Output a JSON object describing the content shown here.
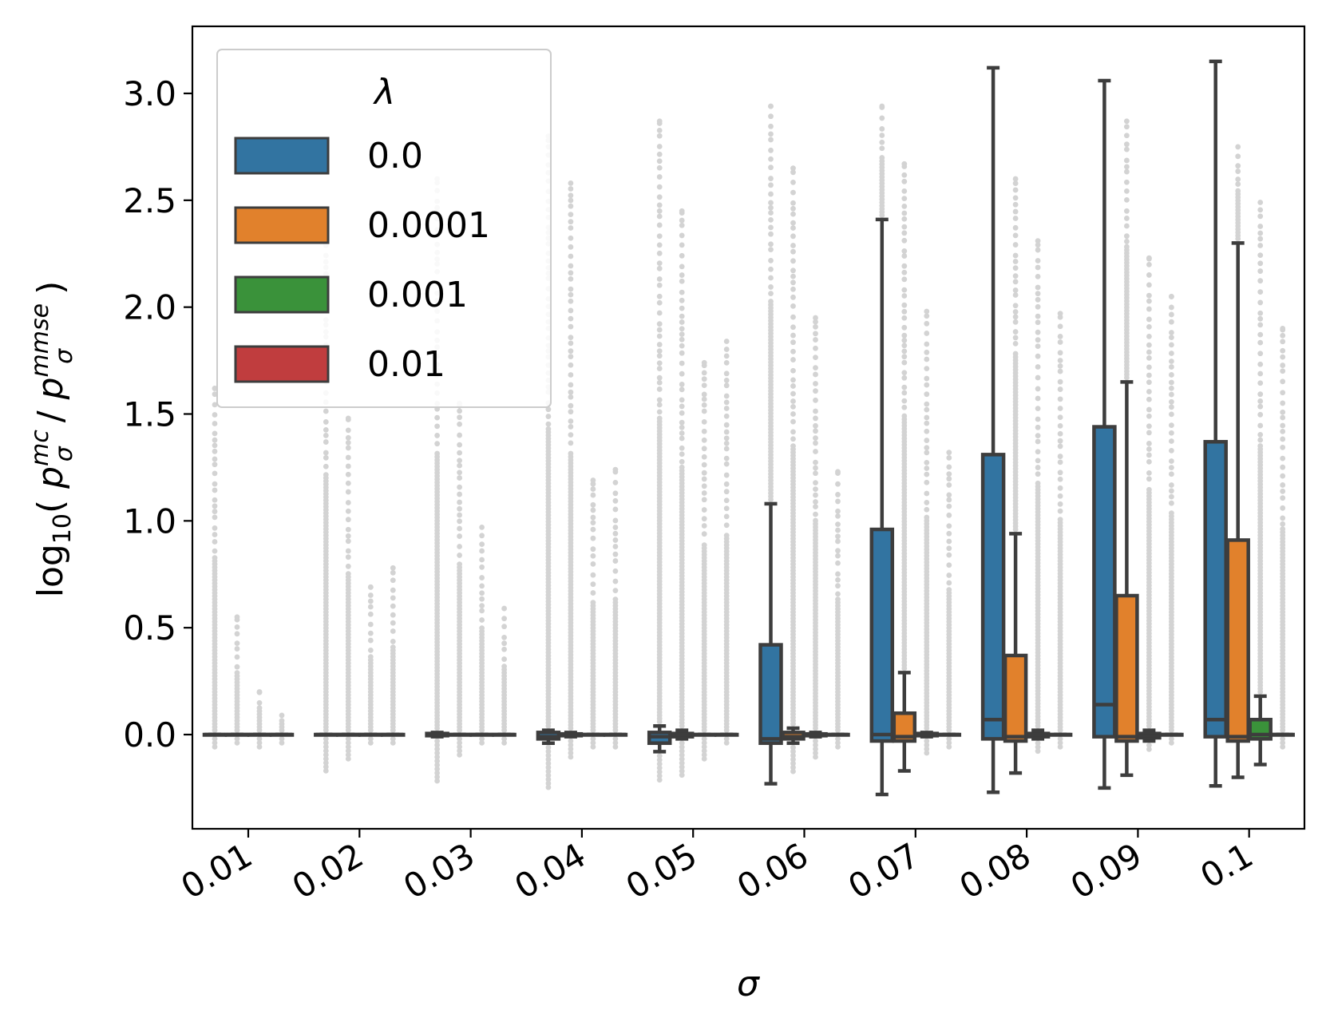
{
  "chart_data": {
    "type": "box",
    "xlabel": "σ",
    "ylabel_main": "log",
    "ylabel_sub": "10",
    "ylabel_open": "( ",
    "ylabel_p1": "p",
    "ylabel_p1_sub": "σ",
    "ylabel_p1_sup": "mc",
    "ylabel_slash": " / ",
    "ylabel_p2": "p",
    "ylabel_p2_sub": "σ",
    "ylabel_p2_sup": "mmse",
    "ylabel_close": " )",
    "ylim": [
      -0.44,
      3.32
    ],
    "yticks": [
      {
        "v": 0.0,
        "label": "0.0"
      },
      {
        "v": 0.5,
        "label": "0.5"
      },
      {
        "v": 1.0,
        "label": "1.0"
      },
      {
        "v": 1.5,
        "label": "1.5"
      },
      {
        "v": 2.0,
        "label": "2.0"
      },
      {
        "v": 2.5,
        "label": "2.5"
      },
      {
        "v": 3.0,
        "label": "3.0"
      }
    ],
    "categories": [
      "0.01",
      "0.02",
      "0.03",
      "0.04",
      "0.05",
      "0.06",
      "0.07",
      "0.08",
      "0.09",
      "0.1"
    ],
    "legend": {
      "title": "λ",
      "position": "top-left",
      "entries": [
        "0.0",
        "0.0001",
        "0.001",
        "0.01"
      ]
    },
    "series": [
      {
        "name": "0.0",
        "color": "#3274a1",
        "boxes": [
          {
            "lw": 0,
            "q1": 0,
            "med": 0,
            "q3": 0,
            "uw": 0
          },
          {
            "lw": 0,
            "q1": 0,
            "med": 0,
            "q3": 0,
            "uw": 0
          },
          {
            "lw": -0.01,
            "q1": -0.005,
            "med": 0,
            "q3": 0.005,
            "uw": 0.01
          },
          {
            "lw": -0.04,
            "q1": -0.02,
            "med": -0.01,
            "q3": 0.01,
            "uw": 0.02
          },
          {
            "lw": -0.08,
            "q1": -0.04,
            "med": -0.01,
            "q3": 0.01,
            "uw": 0.04
          },
          {
            "lw": -0.23,
            "q1": -0.04,
            "med": -0.02,
            "q3": 0.42,
            "uw": 1.08
          },
          {
            "lw": -0.28,
            "q1": -0.03,
            "med": 0.0,
            "q3": 0.96,
            "uw": 2.41
          },
          {
            "lw": -0.27,
            "q1": -0.02,
            "med": 0.07,
            "q3": 1.31,
            "uw": 3.12
          },
          {
            "lw": -0.25,
            "q1": -0.01,
            "med": 0.14,
            "q3": 1.44,
            "uw": 3.06
          },
          {
            "lw": -0.24,
            "q1": -0.01,
            "med": 0.07,
            "q3": 1.37,
            "uw": 3.15
          }
        ],
        "outliers": [
          {
            "min": -0.07,
            "max": 1.62
          },
          {
            "min": -0.18,
            "max": 2.4
          },
          {
            "min": -0.22,
            "max": 2.6
          },
          {
            "min": -0.25,
            "max": 2.8
          },
          {
            "min": -0.23,
            "max": 2.87
          },
          {
            "min": 1.1,
            "max": 2.94
          },
          {
            "min": 2.42,
            "max": 2.94
          },
          {
            "min": 3.12,
            "max": 3.12
          },
          {
            "min": 3.06,
            "max": 3.06
          },
          {
            "min": 3.15,
            "max": 3.15
          }
        ]
      },
      {
        "name": "0.0001",
        "color": "#e1812c",
        "boxes": [
          {
            "lw": 0,
            "q1": 0,
            "med": 0,
            "q3": 0,
            "uw": 0
          },
          {
            "lw": 0,
            "q1": 0,
            "med": 0,
            "q3": 0,
            "uw": 0
          },
          {
            "lw": 0,
            "q1": 0,
            "med": 0,
            "q3": 0,
            "uw": 0
          },
          {
            "lw": -0.01,
            "q1": -0.005,
            "med": 0,
            "q3": 0.003,
            "uw": 0.01
          },
          {
            "lw": -0.02,
            "q1": -0.01,
            "med": 0,
            "q3": 0.005,
            "uw": 0.02
          },
          {
            "lw": -0.04,
            "q1": -0.02,
            "med": -0.01,
            "q3": 0.01,
            "uw": 0.03
          },
          {
            "lw": -0.17,
            "q1": -0.03,
            "med": -0.01,
            "q3": 0.1,
            "uw": 0.29
          },
          {
            "lw": -0.18,
            "q1": -0.03,
            "med": -0.01,
            "q3": 0.37,
            "uw": 0.94
          },
          {
            "lw": -0.19,
            "q1": -0.03,
            "med": -0.01,
            "q3": 0.65,
            "uw": 1.65
          },
          {
            "lw": -0.2,
            "q1": -0.03,
            "med": -0.01,
            "q3": 0.91,
            "uw": 2.3
          }
        ],
        "outliers": [
          {
            "min": -0.05,
            "max": 0.55
          },
          {
            "min": -0.13,
            "max": 1.48
          },
          {
            "min": -0.1,
            "max": 1.55
          },
          {
            "min": -0.12,
            "max": 2.58
          },
          {
            "min": -0.19,
            "max": 2.45
          },
          {
            "min": -0.18,
            "max": 2.65
          },
          {
            "min": -0.1,
            "max": 2.67
          },
          {
            "min": -0.1,
            "max": 2.6
          },
          {
            "min": -0.1,
            "max": 2.87
          },
          {
            "min": 2.32,
            "max": 2.75
          }
        ]
      },
      {
        "name": "0.001",
        "color": "#3a923a",
        "boxes": [
          {
            "lw": 0,
            "q1": 0,
            "med": 0,
            "q3": 0,
            "uw": 0
          },
          {
            "lw": 0,
            "q1": 0,
            "med": 0,
            "q3": 0,
            "uw": 0
          },
          {
            "lw": 0,
            "q1": 0,
            "med": 0,
            "q3": 0,
            "uw": 0
          },
          {
            "lw": 0,
            "q1": 0,
            "med": 0,
            "q3": 0,
            "uw": 0
          },
          {
            "lw": 0,
            "q1": 0,
            "med": 0,
            "q3": 0,
            "uw": 0
          },
          {
            "lw": -0.01,
            "q1": -0.005,
            "med": 0,
            "q3": 0.003,
            "uw": 0.01
          },
          {
            "lw": -0.01,
            "q1": -0.005,
            "med": 0,
            "q3": 0.005,
            "uw": 0.01
          },
          {
            "lw": -0.02,
            "q1": -0.01,
            "med": 0,
            "q3": 0.005,
            "uw": 0.02
          },
          {
            "lw": -0.03,
            "q1": -0.015,
            "med": -0.005,
            "q3": 0.005,
            "uw": 0.02
          },
          {
            "lw": -0.14,
            "q1": -0.02,
            "med": 0,
            "q3": 0.07,
            "uw": 0.18
          }
        ],
        "outliers": [
          {
            "min": -0.06,
            "max": 0.2
          },
          {
            "min": -0.05,
            "max": 0.69
          },
          {
            "min": -0.05,
            "max": 0.97
          },
          {
            "min": -0.07,
            "max": 1.19
          },
          {
            "min": -0.12,
            "max": 1.74
          },
          {
            "min": -0.11,
            "max": 1.95
          },
          {
            "min": -0.1,
            "max": 1.98
          },
          {
            "min": -0.09,
            "max": 2.31
          },
          {
            "min": -0.08,
            "max": 2.23
          },
          {
            "min": -0.15,
            "max": 2.49
          }
        ]
      },
      {
        "name": "0.01",
        "color": "#c03d3e",
        "boxes": [
          {
            "lw": 0,
            "q1": 0,
            "med": 0,
            "q3": 0,
            "uw": 0
          },
          {
            "lw": 0,
            "q1": 0,
            "med": 0,
            "q3": 0,
            "uw": 0
          },
          {
            "lw": 0,
            "q1": 0,
            "med": 0,
            "q3": 0,
            "uw": 0
          },
          {
            "lw": 0,
            "q1": 0,
            "med": 0,
            "q3": 0,
            "uw": 0
          },
          {
            "lw": 0,
            "q1": 0,
            "med": 0,
            "q3": 0,
            "uw": 0
          },
          {
            "lw": 0,
            "q1": 0,
            "med": 0,
            "q3": 0,
            "uw": 0
          },
          {
            "lw": 0,
            "q1": 0,
            "med": 0,
            "q3": 0,
            "uw": 0
          },
          {
            "lw": 0,
            "q1": 0,
            "med": 0,
            "q3": 0,
            "uw": 0
          },
          {
            "lw": 0,
            "q1": 0,
            "med": 0,
            "q3": 0,
            "uw": 0
          },
          {
            "lw": 0,
            "q1": 0,
            "med": 0,
            "q3": 0,
            "uw": 0
          }
        ],
        "outliers": [
          {
            "min": -0.04,
            "max": 0.09
          },
          {
            "min": -0.04,
            "max": 0.78
          },
          {
            "min": -0.04,
            "max": 0.59
          },
          {
            "min": -0.06,
            "max": 1.24
          },
          {
            "min": -0.04,
            "max": 1.84
          },
          {
            "min": -0.07,
            "max": 1.23
          },
          {
            "min": -0.06,
            "max": 1.32
          },
          {
            "min": -0.06,
            "max": 1.97
          },
          {
            "min": -0.05,
            "max": 2.05
          },
          {
            "min": -0.06,
            "max": 1.9
          }
        ]
      }
    ]
  }
}
